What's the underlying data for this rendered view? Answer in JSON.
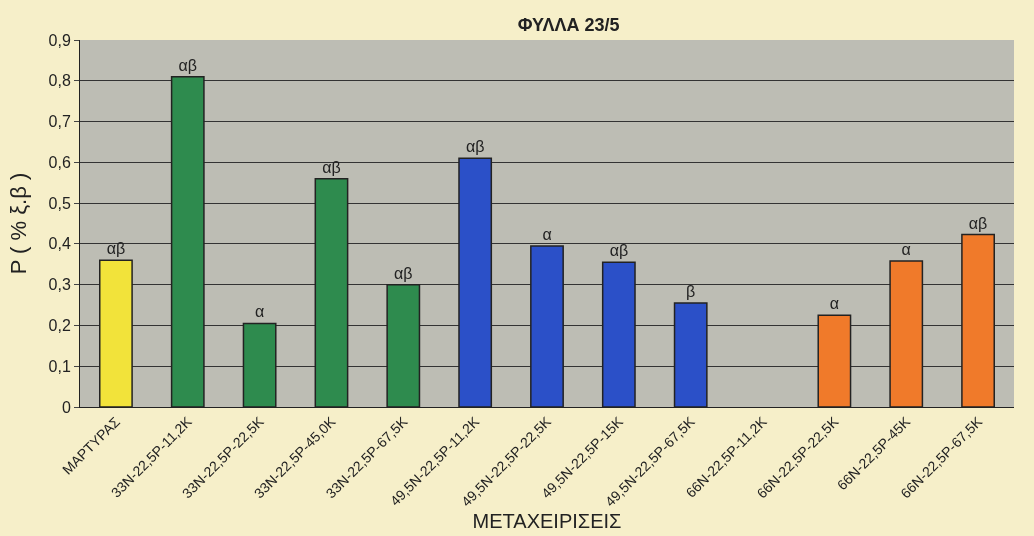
{
  "chart_data": {
    "type": "bar",
    "title": "ΦΥΛΛΑ 23/5",
    "xlabel": "ΜΕΤΑΧΕΙΡΙΣΕΙΣ",
    "ylabel": "P ( % ξ.β )",
    "categories": [
      "ΜΑΡΤΥΡΑΣ",
      "33N-22,5P-11,2K",
      "33N-22,5P-22,5K",
      "33N-22,5P-45,0K",
      "33N-22,5P-67,5K",
      "49,5N-22,5P-11,2K",
      "49,5N-22,5P-22,5K",
      "49,5N-22,5P-15K",
      "49,5N-22,5P-67,5K",
      "66N-22,5P-11,2K",
      "66N-22,5P-22,5K",
      "66N-22,5P-45K",
      "66N-22,5P-67,5K"
    ],
    "values": [
      0.36,
      0.81,
      0.205,
      0.56,
      0.3,
      0.61,
      0.395,
      0.355,
      0.255,
      null,
      0.225,
      0.358,
      0.423
    ],
    "value_labels": [
      "αβ",
      "αβ",
      "α",
      "αβ",
      "αβ",
      "αβ",
      "α",
      "αβ",
      "β",
      null,
      "α",
      "α",
      "αβ"
    ],
    "colors": [
      "#f2e33a",
      "#2e8b4e",
      "#2e8b4e",
      "#2e8b4e",
      "#2e8b4e",
      "#2b50c8",
      "#2b50c8",
      "#2b50c8",
      "#2b50c8",
      "#f07a2a",
      "#f07a2a",
      "#f07a2a",
      "#f07a2a"
    ],
    "ylim": [
      0,
      0.9
    ],
    "yticks": [
      {
        "value": 0,
        "label": "0"
      },
      {
        "value": 0.1,
        "label": "0,1"
      },
      {
        "value": 0.2,
        "label": "0,2"
      },
      {
        "value": 0.3,
        "label": "0,3"
      },
      {
        "value": 0.4,
        "label": "0,4"
      },
      {
        "value": 0.5,
        "label": "0,5"
      },
      {
        "value": 0.6,
        "label": "0,6"
      },
      {
        "value": 0.7,
        "label": "0,7"
      },
      {
        "value": 0.8,
        "label": "0,8"
      },
      {
        "value": 0.9,
        "label": "0,9"
      }
    ],
    "grid": "y"
  }
}
